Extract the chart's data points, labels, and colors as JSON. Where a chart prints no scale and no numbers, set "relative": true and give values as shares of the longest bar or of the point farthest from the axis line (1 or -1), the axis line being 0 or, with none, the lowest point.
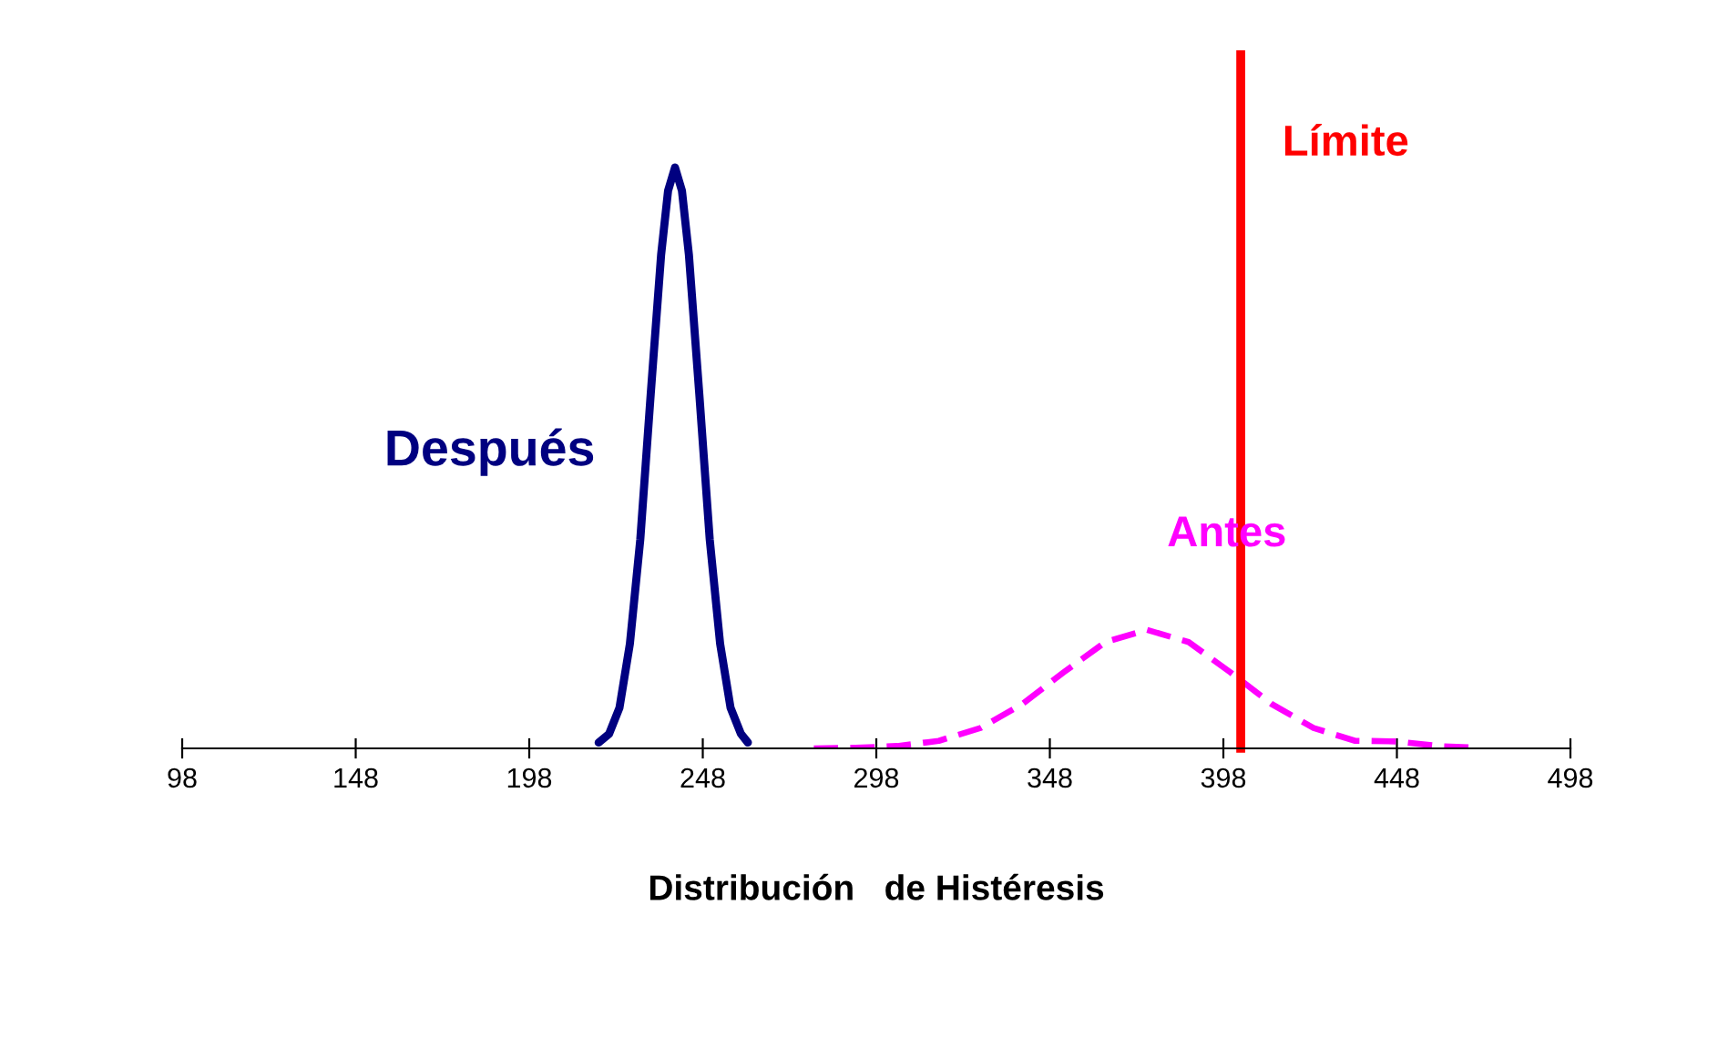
{
  "chart_data": {
    "type": "line",
    "relative": true,
    "xlabel": "Distribución   de Histéresis",
    "xlim": [
      98,
      498
    ],
    "xticks": [
      98,
      148,
      198,
      248,
      298,
      348,
      398,
      448,
      498
    ],
    "grid": false,
    "legend": false,
    "series": [
      {
        "name": "Después",
        "color": "#000080",
        "line_style": "solid",
        "x": [
          218,
          221,
          224,
          227,
          230,
          233,
          236,
          238,
          240,
          242,
          244,
          247,
          250,
          253,
          256,
          259,
          261
        ],
        "values": [
          0.01,
          0.025,
          0.07,
          0.18,
          0.36,
          0.61,
          0.85,
          0.96,
          1.0,
          0.96,
          0.85,
          0.61,
          0.36,
          0.18,
          0.07,
          0.025,
          0.01
        ]
      },
      {
        "name": "Antes",
        "color": "#ff00ff",
        "line_style": "dashed",
        "x": [
          280,
          292,
          304,
          316,
          328,
          340,
          352,
          364,
          376,
          388,
          400,
          412,
          424,
          436,
          448,
          460,
          472
        ],
        "values": [
          0.0,
          0.001,
          0.004,
          0.013,
          0.035,
          0.076,
          0.131,
          0.183,
          0.204,
          0.183,
          0.131,
          0.076,
          0.035,
          0.013,
          0.012,
          0.004,
          0.001
        ]
      }
    ],
    "ref_lines": [
      {
        "axis": "x",
        "value": 403,
        "label": "Límite",
        "color": "#ff0000",
        "line_style": "solid"
      }
    ]
  }
}
